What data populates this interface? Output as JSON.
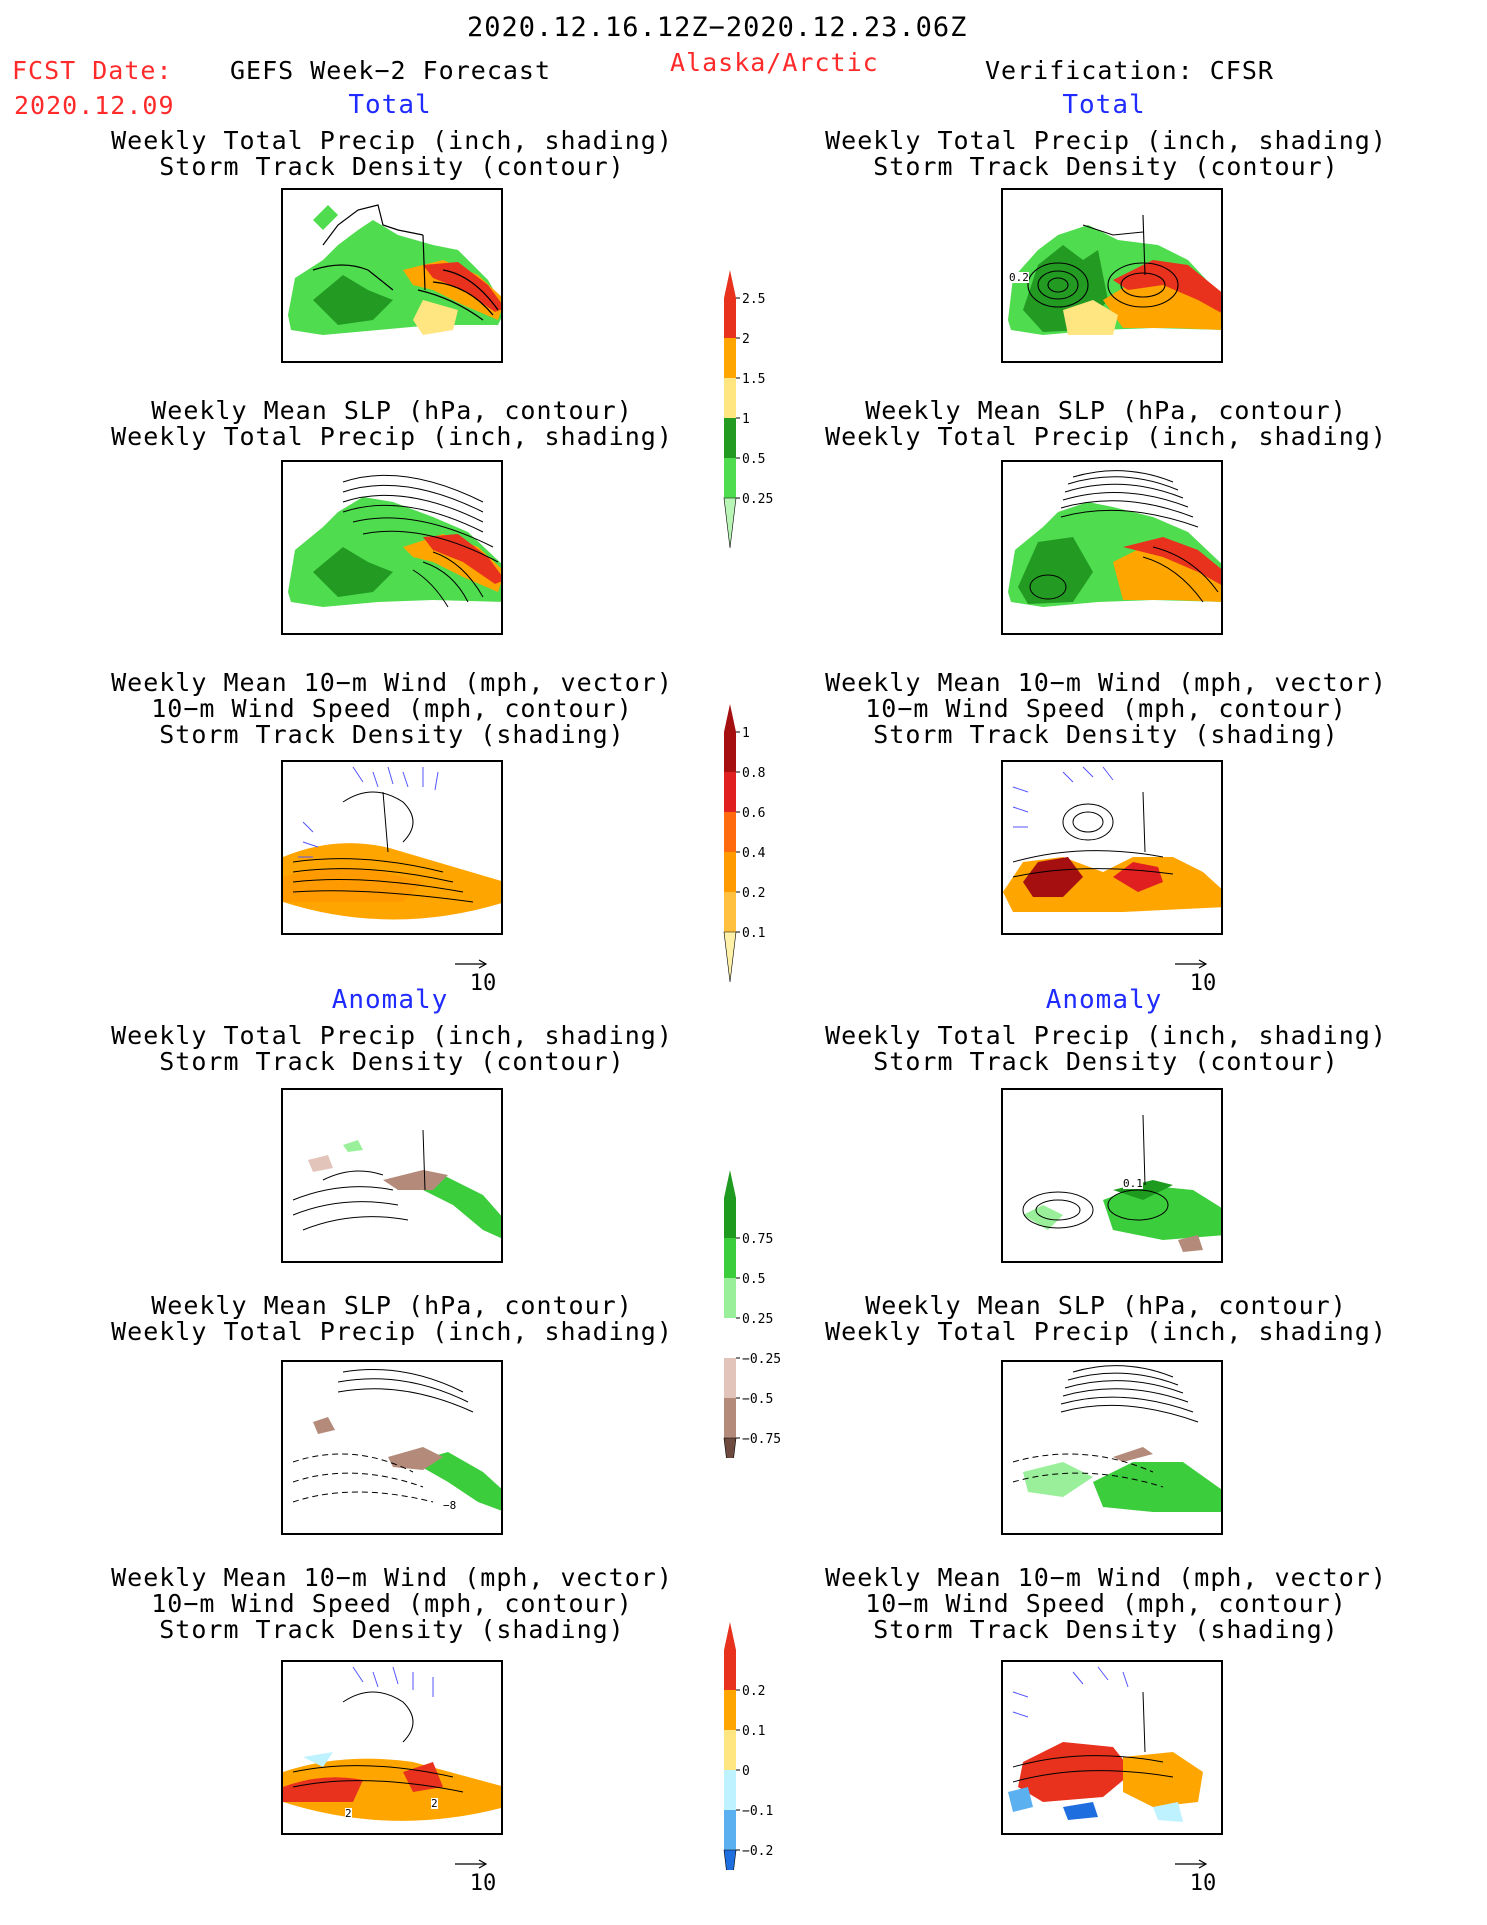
{
  "header": {
    "valid_period": "2020.12.16.12Z−2020.12.23.06Z",
    "fcst_label": "FCST Date:",
    "fcst_date": "2020.12.09",
    "model": "GEFS Week−2 Forecast",
    "region": "Alaska/Arctic",
    "verification": "Verification: CFSR"
  },
  "sections": {
    "total_left": "Total",
    "total_right": "Total",
    "anom_left": "Anomaly",
    "anom_right": "Anomaly"
  },
  "panel_titles": {
    "precip_track": "Weekly Total Precip (inch, shading)\nStorm Track Density (contour)",
    "slp_precip": "Weekly Mean SLP (hPa, contour)\nWeekly Total Precip (inch, shading)",
    "wind_track": "Weekly Mean 10−m Wind (mph, vector)\n10−m Wind Speed (mph, contour)\nStorm Track Density (shading)"
  },
  "vector_ref": "10",
  "colorbars": [
    {
      "labels": [
        "2.5",
        "2",
        "1.5",
        "1",
        "0.5",
        "0.25"
      ],
      "colors": [
        "#e8321e",
        "#ffa500",
        "#ffe680",
        "#239b23",
        "#4fdc4f",
        "#b9f5b4"
      ]
    },
    {
      "labels": [
        "1",
        "0.8",
        "0.6",
        "0.4",
        "0.2",
        "0.1"
      ],
      "colors": [
        "#a50f0f",
        "#e02020",
        "#ff6a0e",
        "#ff9a00",
        "#ffc040",
        "#fff2a8"
      ]
    },
    {
      "labels": [
        "0.75",
        "0.5",
        "0.25",
        "−0.25",
        "−0.5",
        "−0.75"
      ],
      "colors": [
        "#1e9a1e",
        "#3ccd3c",
        "#9af09a",
        "#ffffff",
        "#e2c4ba",
        "#b48a7a",
        "#6e4a3e"
      ]
    },
    {
      "labels": [
        "0.2",
        "0.1",
        "0",
        "−0.1",
        "−0.2"
      ],
      "colors": [
        "#e8321e",
        "#ffa500",
        "#ffe680",
        "#bff2ff",
        "#5bb0f0",
        "#1e6ee0"
      ]
    }
  ],
  "map_labels": {
    "r1c2": "0.2",
    "r4c2": "0.1",
    "r5c1": "−8",
    "r6c1a": "2",
    "r6c1b": "2"
  }
}
